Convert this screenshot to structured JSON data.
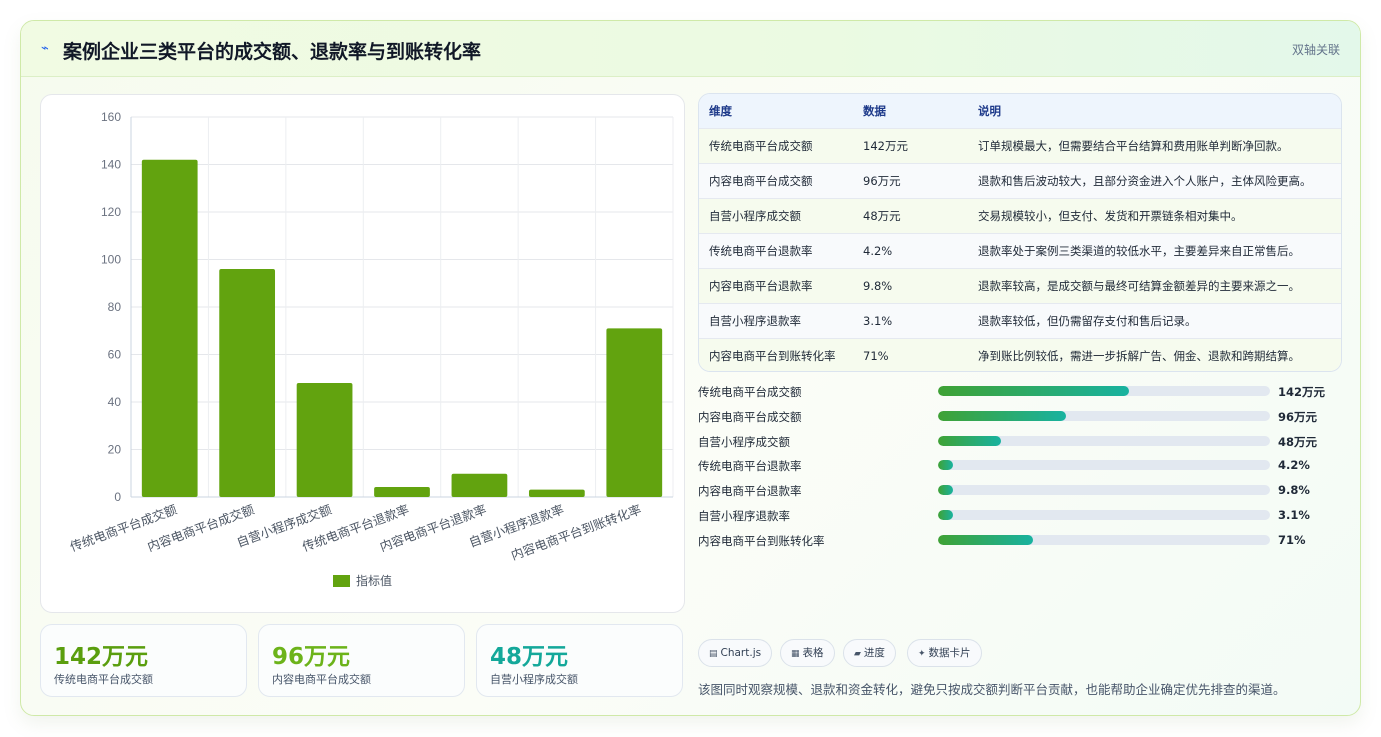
{
  "header": {
    "title": "案例企业三类平台的成交额、退款率与到账转化率",
    "tag": "双轴关联",
    "logo_icon": "spark-icon"
  },
  "chart_data": {
    "type": "bar",
    "categories": [
      "传统电商平台成交额",
      "内容电商平台成交额",
      "自营小程序成交额",
      "传统电商平台退款率",
      "内容电商平台退款率",
      "自营小程序退款率",
      "内容电商平台到账转化率"
    ],
    "series": [
      {
        "name": "指标值",
        "values": [
          142,
          96,
          48,
          4.2,
          9.8,
          3.1,
          71
        ]
      }
    ],
    "ylim": [
      0,
      160
    ],
    "yticks": [
      "0",
      "20",
      "40",
      "60",
      "80",
      "100",
      "120",
      "140",
      "160"
    ],
    "grid": true,
    "legend": "bottom",
    "bar_color": "#62a30f"
  },
  "kpis": [
    {
      "value": "142万元",
      "label": "传统电商平台成交额",
      "color": "#5a9e0e"
    },
    {
      "value": "96万元",
      "label": "内容电商平台成交额",
      "color": "#6cb31a"
    },
    {
      "value": "48万元",
      "label": "自营小程序成交额",
      "color": "#14a89a"
    }
  ],
  "table": {
    "headers": [
      "维度",
      "数据",
      "说明"
    ],
    "rows": [
      [
        "传统电商平台成交额",
        "142万元",
        "订单规模最大，但需要结合平台结算和费用账单判断净回款。"
      ],
      [
        "内容电商平台成交额",
        "96万元",
        "退款和售后波动较大，且部分资金进入个人账户，主体风险更高。"
      ],
      [
        "自营小程序成交额",
        "48万元",
        "交易规模较小，但支付、发货和开票链条相对集中。"
      ],
      [
        "传统电商平台退款率",
        "4.2%",
        "退款率处于案例三类渠道的较低水平，主要差异来自正常售后。"
      ],
      [
        "内容电商平台退款率",
        "9.8%",
        "退款率较高，是成交额与最终可结算金额差异的主要来源之一。"
      ],
      [
        "自营小程序退款率",
        "3.1%",
        "退款率较低，但仍需留存支付和售后记录。"
      ],
      [
        "内容电商平台到账转化率",
        "71%",
        "净到账比例较低，需进一步拆解广告、佣金、退款和跨期结算。"
      ]
    ]
  },
  "progress": [
    {
      "name": "传统电商平台成交额",
      "value": "142万元",
      "fraction": 0.574
    },
    {
      "name": "内容电商平台成交额",
      "value": "96万元",
      "fraction": 0.385
    },
    {
      "name": "自营小程序成交额",
      "value": "48万元",
      "fraction": 0.19
    },
    {
      "name": "传统电商平台退款率",
      "value": "4.2%",
      "fraction": 0.045
    },
    {
      "name": "内容电商平台退款率",
      "value": "9.8%",
      "fraction": 0.045
    },
    {
      "name": "自营小程序退款率",
      "value": "3.1%",
      "fraction": 0.045
    },
    {
      "name": "内容电商平台到账转化率",
      "value": "71%",
      "fraction": 0.285
    }
  ],
  "chips": [
    {
      "icon": "chart-icon",
      "glyph": "▤",
      "label": "Chart.js"
    },
    {
      "icon": "table-icon",
      "glyph": "▦",
      "label": "表格"
    },
    {
      "icon": "progress-icon",
      "glyph": "▰",
      "label": "进度"
    },
    {
      "icon": "card-icon",
      "glyph": "✦",
      "label": "数据卡片"
    }
  ],
  "footnote": "该图同时观察规模、退款和资金转化，避免只按成交额判断平台贡献，也能帮助企业确定优先排查的渠道。"
}
